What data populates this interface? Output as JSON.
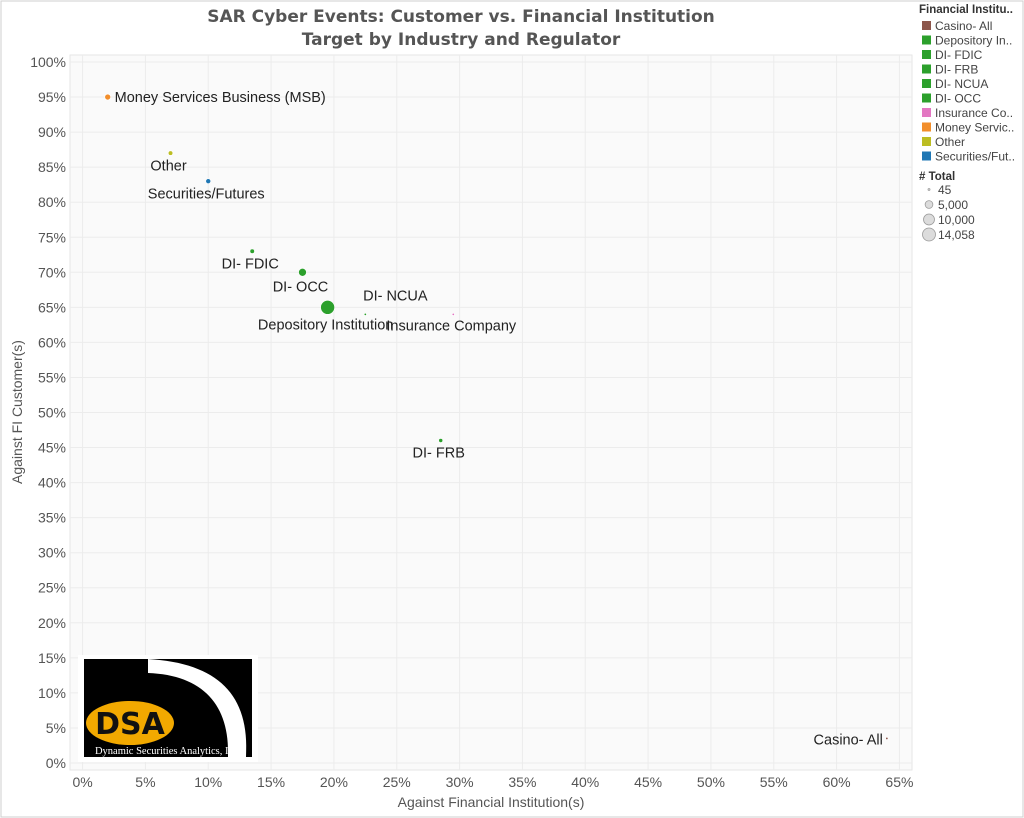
{
  "chart_data": {
    "type": "scatter",
    "title": [
      "SAR Cyber Events: Customer vs. Financial Institution",
      "Target by Industry and Regulator"
    ],
    "xlabel": "Against Financial Institution(s)",
    "ylabel": "Against FI Customer(s)",
    "xlim": [
      -1,
      66
    ],
    "ylim": [
      -1,
      101
    ],
    "xticks": [
      0,
      5,
      10,
      15,
      20,
      25,
      30,
      35,
      40,
      45,
      50,
      55,
      60,
      65
    ],
    "yticks": [
      0,
      5,
      10,
      15,
      20,
      25,
      30,
      35,
      40,
      45,
      50,
      55,
      60,
      65,
      70,
      75,
      80,
      85,
      90,
      95,
      100
    ],
    "tick_suffix": "%",
    "grid": true,
    "points": [
      {
        "name": "Money Services Business (MSB)",
        "label": "Money Services Business (MSB)",
        "x": 2,
        "y": 95,
        "total": 2500,
        "color": "#f28e2b",
        "label_pos": "right"
      },
      {
        "name": "Other",
        "label": "Other",
        "x": 7,
        "y": 87,
        "total": 1500,
        "color": "#bcbd22",
        "label_pos": "below"
      },
      {
        "name": "Securities/Futures",
        "label": "Securities/Futures",
        "x": 10,
        "y": 83,
        "total": 1800,
        "color": "#1f77b4",
        "label_pos": "below"
      },
      {
        "name": "DI- FDIC",
        "label": "DI- FDIC",
        "x": 13.5,
        "y": 73,
        "total": 1500,
        "color": "#2ca02c",
        "label_pos": "below"
      },
      {
        "name": "DI- OCC",
        "label": "DI- OCC",
        "x": 17.5,
        "y": 70,
        "total": 4500,
        "color": "#2ca02c",
        "label_pos": "below"
      },
      {
        "name": "Depository Institution",
        "label": "Depository Institution",
        "x": 19.5,
        "y": 65,
        "total": 14058,
        "color": "#2ca02c",
        "label_pos": "below"
      },
      {
        "name": "DI- NCUA",
        "label": "DI- NCUA",
        "x": 22.5,
        "y": 64,
        "total": 300,
        "color": "#2ca02c",
        "label_pos": "above-right"
      },
      {
        "name": "Insurance Company",
        "label": "Insurance Company",
        "x": 29.5,
        "y": 64,
        "total": 45,
        "color": "#e377c2",
        "label_pos": "below"
      },
      {
        "name": "DI- FRB",
        "label": "DI- FRB",
        "x": 28.5,
        "y": 46,
        "total": 1200,
        "color": "#2ca02c",
        "label_pos": "below"
      },
      {
        "name": "Casino- All",
        "label": "Casino- All",
        "x": 64,
        "y": 3.5,
        "total": 45,
        "color": "#8c564b",
        "label_pos": "left"
      }
    ],
    "legend": {
      "color_title": "Financial Institu..",
      "color_items": [
        {
          "label": "Casino- All",
          "color": "#8c564b"
        },
        {
          "label": "Depository In..",
          "color": "#2ca02c"
        },
        {
          "label": "DI- FDIC",
          "color": "#2ca02c"
        },
        {
          "label": "DI- FRB",
          "color": "#2ca02c"
        },
        {
          "label": "DI- NCUA",
          "color": "#2ca02c"
        },
        {
          "label": "DI- OCC",
          "color": "#2ca02c"
        },
        {
          "label": "Insurance Co..",
          "color": "#e377c2"
        },
        {
          "label": "Money Servic..",
          "color": "#f28e2b"
        },
        {
          "label": "Other",
          "color": "#bcbd22"
        },
        {
          "label": "Securities/Fut..",
          "color": "#1f77b4"
        }
      ],
      "size_title": "# Total",
      "size_items": [
        {
          "label": "45",
          "value": 45
        },
        {
          "label": "5,000",
          "value": 5000
        },
        {
          "label": "10,000",
          "value": 10000
        },
        {
          "label": "14,058",
          "value": 14058
        }
      ],
      "placement": "right"
    }
  },
  "logo": {
    "mark": "DSA",
    "text": "Dynamic Securities Analytics, Inc."
  }
}
